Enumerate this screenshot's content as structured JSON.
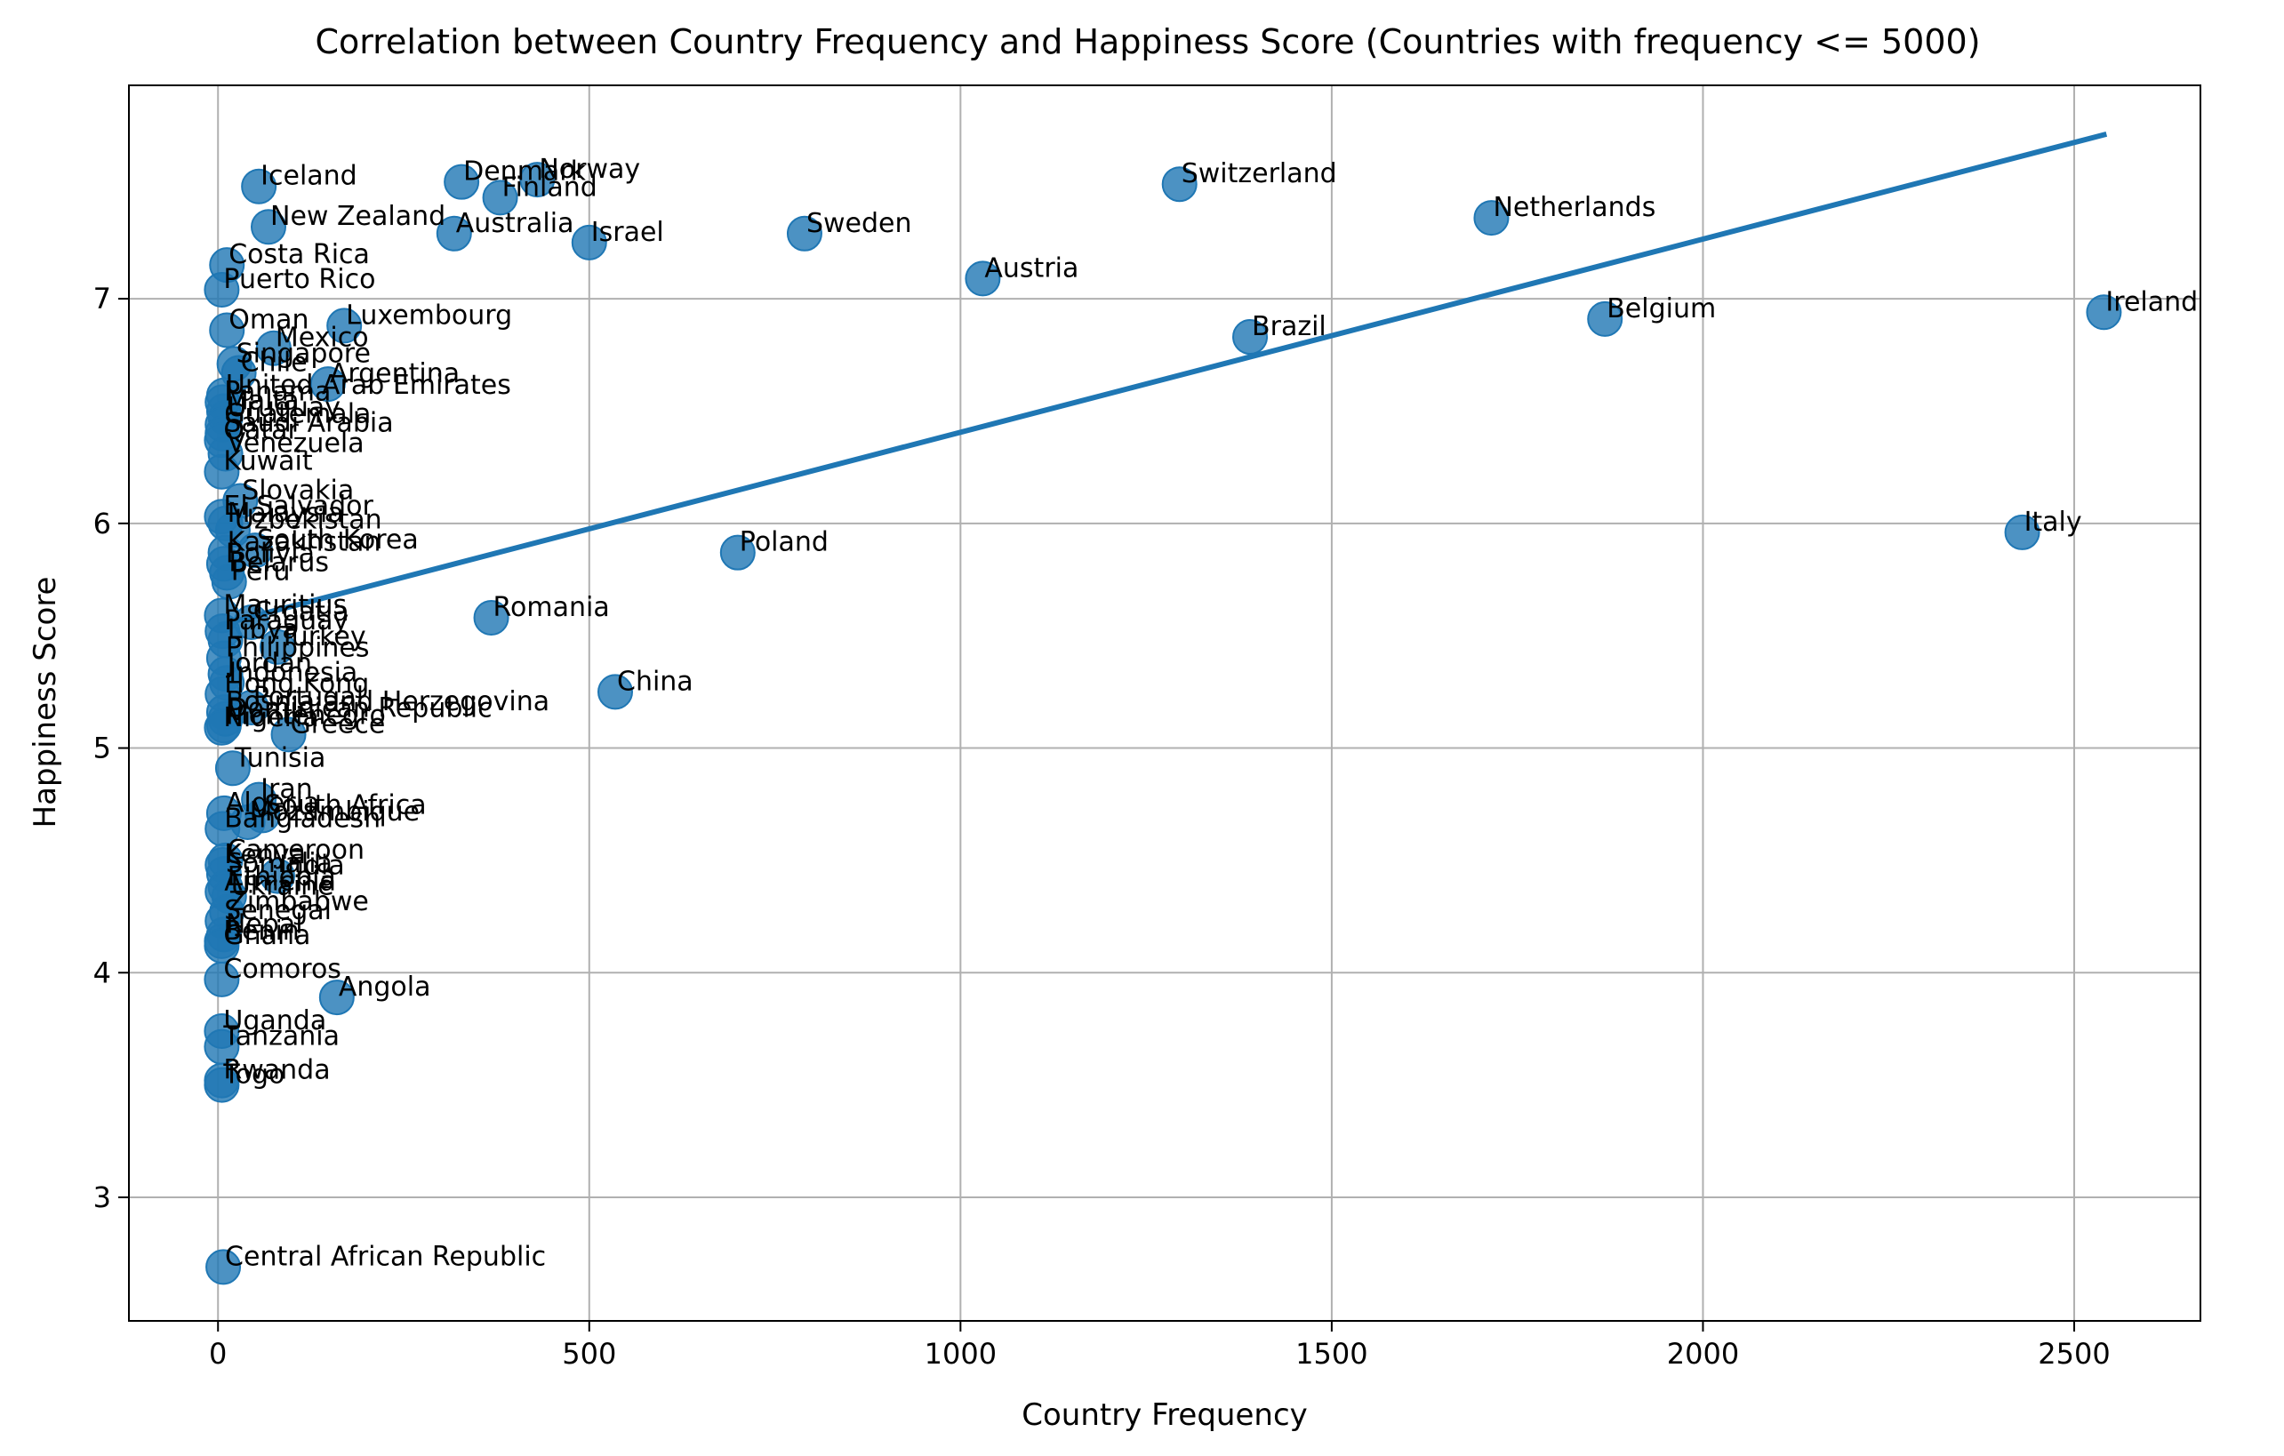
{
  "chart_data": {
    "type": "scatter",
    "title": "Correlation between Country Frequency and Happiness Score (Countries with frequency <= 5000)",
    "xlabel": "Country Frequency",
    "ylabel": "Happiness Score",
    "xlim": [
      -120,
      2670
    ],
    "ylim": [
      2.45,
      7.95
    ],
    "xticks": [
      0,
      500,
      1000,
      1500,
      2000,
      2500
    ],
    "yticks": [
      3,
      4,
      5,
      6,
      7
    ],
    "grid": true,
    "colors": {
      "points": "#1f77b4",
      "trend": "#1f77b4"
    },
    "trend_line": {
      "x": [
        5,
        2540
      ],
      "y": [
        5.55,
        7.73
      ]
    },
    "points": [
      {
        "label": "Iceland",
        "x": 55,
        "y": 7.5
      },
      {
        "label": "Denmark",
        "x": 328,
        "y": 7.52
      },
      {
        "label": "Norway",
        "x": 430,
        "y": 7.53
      },
      {
        "label": "Finland",
        "x": 380,
        "y": 7.45
      },
      {
        "label": "New Zealand",
        "x": 68,
        "y": 7.32
      },
      {
        "label": "Australia",
        "x": 318,
        "y": 7.29
      },
      {
        "label": "Israel",
        "x": 500,
        "y": 7.25
      },
      {
        "label": "Sweden",
        "x": 790,
        "y": 7.29
      },
      {
        "label": "Switzerland",
        "x": 1295,
        "y": 7.51
      },
      {
        "label": "Netherlands",
        "x": 1715,
        "y": 7.36
      },
      {
        "label": "Austria",
        "x": 1030,
        "y": 7.09
      },
      {
        "label": "Ireland",
        "x": 2540,
        "y": 6.94
      },
      {
        "label": "Belgium",
        "x": 1868,
        "y": 6.91
      },
      {
        "label": "Brazil",
        "x": 1390,
        "y": 6.83
      },
      {
        "label": "Costa Rica",
        "x": 12,
        "y": 7.15
      },
      {
        "label": "Puerto Rico",
        "x": 5,
        "y": 7.04
      },
      {
        "label": "Luxembourg",
        "x": 170,
        "y": 6.88
      },
      {
        "label": "Oman",
        "x": 12,
        "y": 6.86
      },
      {
        "label": "Mexico",
        "x": 75,
        "y": 6.78
      },
      {
        "label": "Singapore",
        "x": 22,
        "y": 6.71
      },
      {
        "label": "Chile",
        "x": 28,
        "y": 6.67
      },
      {
        "label": "Argentina",
        "x": 148,
        "y": 6.62
      },
      {
        "label": "United Arab Emirates",
        "x": 8,
        "y": 6.57
      },
      {
        "label": "Panama",
        "x": 6,
        "y": 6.54
      },
      {
        "label": "Malta",
        "x": 8,
        "y": 6.5
      },
      {
        "label": "Uruguay",
        "x": 10,
        "y": 6.47
      },
      {
        "label": "Guatemala",
        "x": 6,
        "y": 6.44
      },
      {
        "label": "Saudi Arabia",
        "x": 6,
        "y": 6.4
      },
      {
        "label": "Qatar",
        "x": 5,
        "y": 6.37
      },
      {
        "label": "Venezuela",
        "x": 10,
        "y": 6.31
      },
      {
        "label": "Kuwait",
        "x": 5,
        "y": 6.23
      },
      {
        "label": "Slovakia",
        "x": 30,
        "y": 6.1
      },
      {
        "label": "El Salvador",
        "x": 5,
        "y": 6.03
      },
      {
        "label": "Malaysia",
        "x": 10,
        "y": 6.0
      },
      {
        "label": "Uzbekistan",
        "x": 20,
        "y": 5.97
      },
      {
        "label": "Italy",
        "x": 2430,
        "y": 5.96
      },
      {
        "label": "South Korea",
        "x": 50,
        "y": 5.88
      },
      {
        "label": "Kazakhstan",
        "x": 10,
        "y": 5.87
      },
      {
        "label": "Poland",
        "x": 700,
        "y": 5.87
      },
      {
        "label": "Bolivia",
        "x": 8,
        "y": 5.82
      },
      {
        "label": "Belarus",
        "x": 12,
        "y": 5.78
      },
      {
        "label": "Peru",
        "x": 15,
        "y": 5.74
      },
      {
        "label": "Mauritius",
        "x": 5,
        "y": 5.59
      },
      {
        "label": "Romania",
        "x": 368,
        "y": 5.58
      },
      {
        "label": "Croatia",
        "x": 45,
        "y": 5.56
      },
      {
        "label": "Paraguay",
        "x": 6,
        "y": 5.52
      },
      {
        "label": "Libya",
        "x": 10,
        "y": 5.48
      },
      {
        "label": "Turkey",
        "x": 80,
        "y": 5.45
      },
      {
        "label": "Philippines",
        "x": 8,
        "y": 5.4
      },
      {
        "label": "Jordan",
        "x": 10,
        "y": 5.33
      },
      {
        "label": "Indonesia",
        "x": 12,
        "y": 5.29
      },
      {
        "label": "China",
        "x": 535,
        "y": 5.25
      },
      {
        "label": "Hong Kong",
        "x": 6,
        "y": 5.24
      },
      {
        "label": "Bosnia and Herzegovina",
        "x": 8,
        "y": 5.16
      },
      {
        "label": "Portugal",
        "x": 45,
        "y": 5.18
      },
      {
        "label": "Dominican Republic",
        "x": 10,
        "y": 5.13
      },
      {
        "label": "Montenegro",
        "x": 8,
        "y": 5.1
      },
      {
        "label": "Nigeria",
        "x": 5,
        "y": 5.09
      },
      {
        "label": "Greece",
        "x": 95,
        "y": 5.06
      },
      {
        "label": "Tunisia",
        "x": 20,
        "y": 4.91
      },
      {
        "label": "Iran",
        "x": 55,
        "y": 4.77
      },
      {
        "label": "Algeria",
        "x": 8,
        "y": 4.71
      },
      {
        "label": "South Africa",
        "x": 60,
        "y": 4.7
      },
      {
        "label": "Mozambique",
        "x": 40,
        "y": 4.67
      },
      {
        "label": "Bangladesh",
        "x": 6,
        "y": 4.64
      },
      {
        "label": "Cameroon",
        "x": 10,
        "y": 4.5
      },
      {
        "label": "Kenya",
        "x": 6,
        "y": 4.48
      },
      {
        "label": "Somalia",
        "x": 8,
        "y": 4.44
      },
      {
        "label": "India",
        "x": 80,
        "y": 4.43
      },
      {
        "label": "Ethiopia",
        "x": 10,
        "y": 4.38
      },
      {
        "label": "Armenia",
        "x": 6,
        "y": 4.36
      },
      {
        "label": "Ukraine",
        "x": 15,
        "y": 4.34
      },
      {
        "label": "Zimbabwe",
        "x": 12,
        "y": 4.27
      },
      {
        "label": "Senegal",
        "x": 6,
        "y": 4.23
      },
      {
        "label": "Nepal",
        "x": 8,
        "y": 4.17
      },
      {
        "label": "Benin",
        "x": 5,
        "y": 4.14
      },
      {
        "label": "Ghana",
        "x": 5,
        "y": 4.12
      },
      {
        "label": "Comoros",
        "x": 5,
        "y": 3.97
      },
      {
        "label": "Angola",
        "x": 160,
        "y": 3.89
      },
      {
        "label": "Uganda",
        "x": 5,
        "y": 3.74
      },
      {
        "label": "Tanzania",
        "x": 5,
        "y": 3.67
      },
      {
        "label": "Rwanda",
        "x": 5,
        "y": 3.52
      },
      {
        "label": "Togo",
        "x": 5,
        "y": 3.5
      },
      {
        "label": "Central African Republic",
        "x": 7,
        "y": 2.69
      }
    ]
  }
}
